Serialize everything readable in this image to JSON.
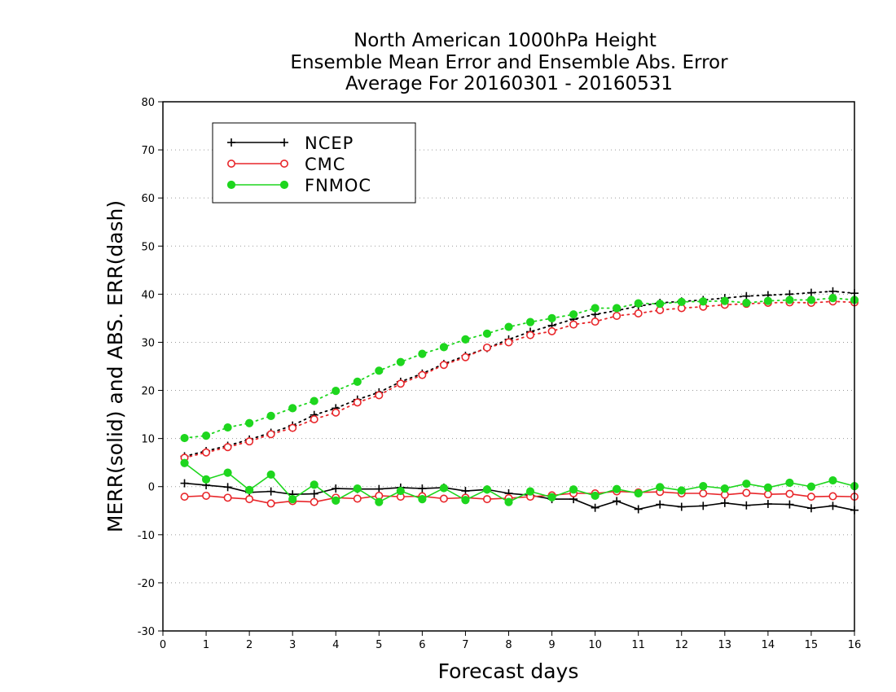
{
  "chart_data": {
    "type": "line",
    "title": [
      "North American 1000hPa Height",
      "Ensemble Mean Error and Ensemble Abs. Error",
      "Average For 20160301 - 20160531"
    ],
    "xlabel": "Forecast days",
    "ylabel": "MERR(solid) and ABS. ERR(dash)",
    "xlim": [
      0,
      16
    ],
    "ylim": [
      -30,
      80
    ],
    "xticks": [
      0,
      1,
      2,
      3,
      4,
      5,
      6,
      7,
      8,
      9,
      10,
      11,
      12,
      13,
      14,
      15,
      16
    ],
    "yticks": [
      -30,
      -20,
      -10,
      0,
      10,
      20,
      30,
      40,
      50,
      60,
      70,
      80
    ],
    "grid": "horizontal dotted",
    "legend_position": "top-left",
    "x": [
      0.5,
      1,
      1.5,
      2,
      2.5,
      3,
      3.5,
      4,
      4.5,
      5,
      5.5,
      6,
      6.5,
      7,
      7.5,
      8,
      8.5,
      9,
      9.5,
      10,
      10.5,
      11,
      11.5,
      12,
      12.5,
      13,
      13.5,
      14,
      14.5,
      15,
      15.5,
      16
    ],
    "series": [
      {
        "name": "NCEP",
        "color": "#000000",
        "marker": "plus",
        "merr": [
          0.7,
          0.3,
          -0.1,
          -1.2,
          -1.0,
          -1.6,
          -1.5,
          -0.4,
          -0.5,
          -0.5,
          -0.2,
          -0.4,
          -0.2,
          -0.9,
          -0.6,
          -1.4,
          -1.8,
          -2.6,
          -2.6,
          -4.4,
          -3.0,
          -4.7,
          -3.7,
          -4.2,
          -4.0,
          -3.4,
          -3.9,
          -3.6,
          -3.7,
          -4.5,
          -4.0,
          -4.9
        ],
        "abs_err": [
          6.3,
          7.4,
          8.5,
          9.8,
          11.2,
          12.7,
          14.9,
          16.3,
          18.1,
          19.6,
          21.8,
          23.5,
          25.5,
          27.2,
          28.8,
          30.6,
          32.2,
          33.5,
          34.8,
          35.8,
          36.6,
          37.5,
          38.2,
          38.5,
          38.8,
          39.2,
          39.6,
          39.8,
          40.0,
          40.3,
          40.6,
          40.2
        ]
      },
      {
        "name": "CMC",
        "color": "#e8262a",
        "marker": "open-circle",
        "merr": [
          -2.1,
          -1.9,
          -2.3,
          -2.6,
          -3.5,
          -3.0,
          -3.2,
          -2.3,
          -2.5,
          -1.9,
          -2.1,
          -2.0,
          -2.5,
          -2.3,
          -2.6,
          -2.4,
          -2.1,
          -1.8,
          -1.4,
          -1.4,
          -1.0,
          -1.2,
          -1.1,
          -1.4,
          -1.4,
          -1.7,
          -1.3,
          -1.6,
          -1.5,
          -2.1,
          -2.0,
          -2.1
        ],
        "abs_err": [
          6.0,
          7.1,
          8.2,
          9.4,
          10.9,
          12.2,
          14.0,
          15.4,
          17.5,
          19.0,
          21.4,
          23.2,
          25.3,
          26.9,
          28.9,
          30.0,
          31.5,
          32.3,
          33.7,
          34.3,
          35.5,
          36.0,
          36.7,
          37.1,
          37.4,
          37.8,
          38.0,
          38.2,
          38.3,
          38.2,
          38.5,
          38.3
        ]
      },
      {
        "name": "FNMOC",
        "color": "#1ed61e",
        "marker": "filled-circle",
        "merr": [
          4.9,
          1.5,
          2.9,
          -0.7,
          2.5,
          -2.6,
          0.4,
          -2.9,
          -0.4,
          -3.2,
          -0.9,
          -2.6,
          -0.3,
          -2.8,
          -0.6,
          -3.2,
          -1.0,
          -2.2,
          -0.6,
          -1.9,
          -0.5,
          -1.4,
          -0.1,
          -0.8,
          0.1,
          -0.4,
          0.6,
          -0.2,
          0.8,
          0.0,
          1.3,
          0.1
        ],
        "abs_err": [
          10.1,
          10.6,
          12.3,
          13.2,
          14.7,
          16.3,
          17.8,
          19.9,
          21.8,
          24.1,
          25.9,
          27.6,
          29.0,
          30.6,
          31.8,
          33.2,
          34.2,
          35.0,
          35.8,
          37.1,
          37.1,
          38.1,
          38.0,
          38.4,
          38.5,
          38.6,
          38.2,
          38.6,
          38.8,
          38.8,
          39.2,
          38.8
        ]
      }
    ]
  }
}
